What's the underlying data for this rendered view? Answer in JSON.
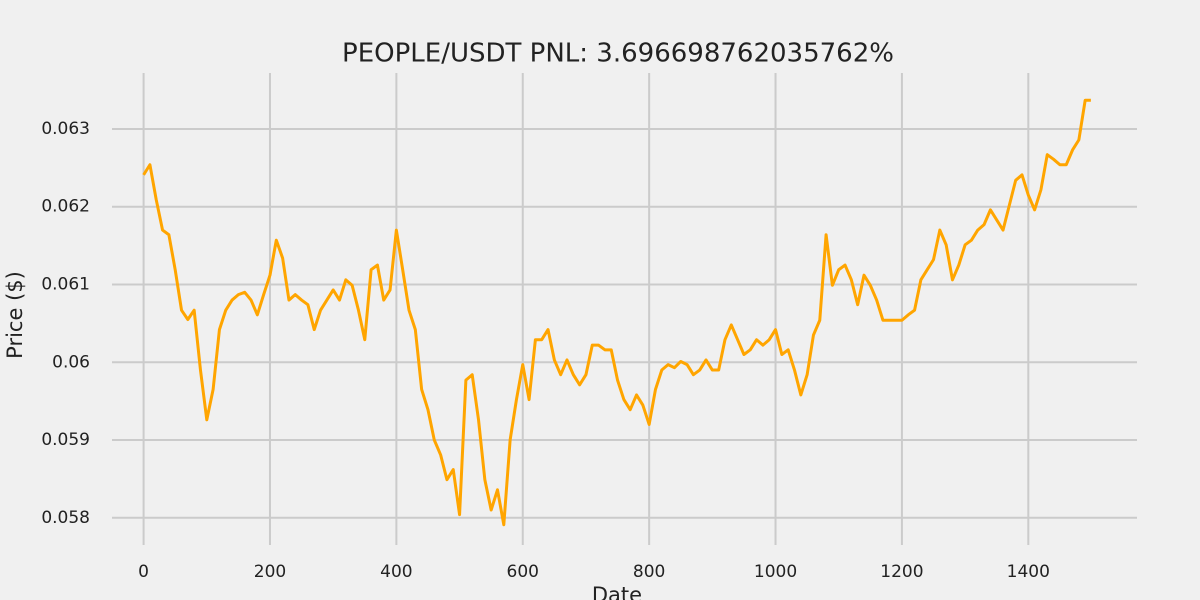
{
  "chart_data": {
    "type": "line",
    "title": "PEOPLE/USDT  PNL: 3.696698762035762%",
    "x_label": "Date",
    "y_label": "Price ($)",
    "x": [
      0,
      10,
      20,
      30,
      40,
      50,
      60,
      70,
      80,
      90,
      100,
      110,
      120,
      130,
      140,
      150,
      160,
      170,
      180,
      190,
      200,
      210,
      220,
      230,
      240,
      250,
      260,
      270,
      280,
      290,
      300,
      310,
      320,
      330,
      340,
      350,
      360,
      370,
      380,
      390,
      400,
      410,
      420,
      430,
      440,
      450,
      460,
      470,
      480,
      490,
      500,
      510,
      520,
      530,
      540,
      550,
      560,
      570,
      580,
      590,
      600,
      610,
      620,
      630,
      640,
      650,
      660,
      670,
      680,
      690,
      700,
      710,
      720,
      730,
      740,
      750,
      760,
      770,
      780,
      790,
      800,
      810,
      820,
      830,
      840,
      850,
      860,
      870,
      880,
      890,
      900,
      910,
      920,
      930,
      940,
      950,
      960,
      970,
      980,
      990,
      1000,
      1010,
      1020,
      1030,
      1040,
      1050,
      1060,
      1070,
      1080,
      1090,
      1100,
      1110,
      1120,
      1130,
      1140,
      1150,
      1160,
      1170,
      1180,
      1190,
      1200,
      1210,
      1220,
      1230,
      1240,
      1250,
      1260,
      1270,
      1280,
      1290,
      1300,
      1310,
      1320,
      1330,
      1340,
      1350,
      1360,
      1370,
      1380,
      1390,
      1400,
      1410,
      1420,
      1430,
      1440,
      1450,
      1460,
      1470,
      1480,
      1490,
      1499
    ],
    "series": [
      {
        "name": "PEOPLE/USDT",
        "color": "#ffa500",
        "values": [
          0.06241,
          0.06254,
          0.06209,
          0.0617,
          0.06164,
          0.06119,
          0.06067,
          0.06055,
          0.06067,
          0.0599,
          0.05926,
          0.05965,
          0.06042,
          0.06067,
          0.0608,
          0.06087,
          0.0609,
          0.0608,
          0.06061,
          0.06087,
          0.06112,
          0.06157,
          0.06134,
          0.0608,
          0.06087,
          0.0608,
          0.06074,
          0.06042,
          0.06067,
          0.0608,
          0.06093,
          0.0608,
          0.06106,
          0.06099,
          0.06067,
          0.06029,
          0.06119,
          0.06125,
          0.0608,
          0.06093,
          0.0617,
          0.06119,
          0.06067,
          0.06042,
          0.05965,
          0.05939,
          0.059,
          0.05881,
          0.05849,
          0.05862,
          0.05804,
          0.05977,
          0.05984,
          0.05926,
          0.05849,
          0.0581,
          0.05836,
          0.05791,
          0.059,
          0.05952,
          0.05997,
          0.05952,
          0.06029,
          0.06029,
          0.06042,
          0.06003,
          0.05984,
          0.06003,
          0.05984,
          0.05971,
          0.05984,
          0.06022,
          0.06022,
          0.06016,
          0.06016,
          0.05977,
          0.05952,
          0.05939,
          0.05958,
          0.05945,
          0.0592,
          0.05965,
          0.0599,
          0.05997,
          0.05993,
          0.06001,
          0.05997,
          0.05984,
          0.0599,
          0.06003,
          0.0599,
          0.0599,
          0.06029,
          0.06048,
          0.06029,
          0.0601,
          0.06016,
          0.06029,
          0.06022,
          0.06029,
          0.06042,
          0.0601,
          0.06016,
          0.0599,
          0.05958,
          0.05984,
          0.06035,
          0.06054,
          0.06164,
          0.06099,
          0.06119,
          0.06125,
          0.06106,
          0.06074,
          0.06112,
          0.06099,
          0.0608,
          0.06054,
          0.06054,
          0.06054,
          0.06054,
          0.06061,
          0.06067,
          0.06106,
          0.06119,
          0.06132,
          0.0617,
          0.06151,
          0.06106,
          0.06125,
          0.06151,
          0.06157,
          0.0617,
          0.06177,
          0.06196,
          0.06183,
          0.0617,
          0.06202,
          0.06234,
          0.06241,
          0.06215,
          0.06196,
          0.06222,
          0.06267,
          0.06261,
          0.06254,
          0.06254,
          0.06273,
          0.06286,
          0.06337,
          0.06337
        ]
      }
    ],
    "xlim": [
      -50,
      1572
    ],
    "ylim": [
      0.05765,
      0.06372
    ],
    "xticks": [
      0,
      200,
      400,
      600,
      800,
      1000,
      1200,
      1400
    ],
    "yticks": [
      0.058,
      0.059,
      0.06,
      0.061,
      0.062,
      0.063
    ],
    "grid": true
  }
}
